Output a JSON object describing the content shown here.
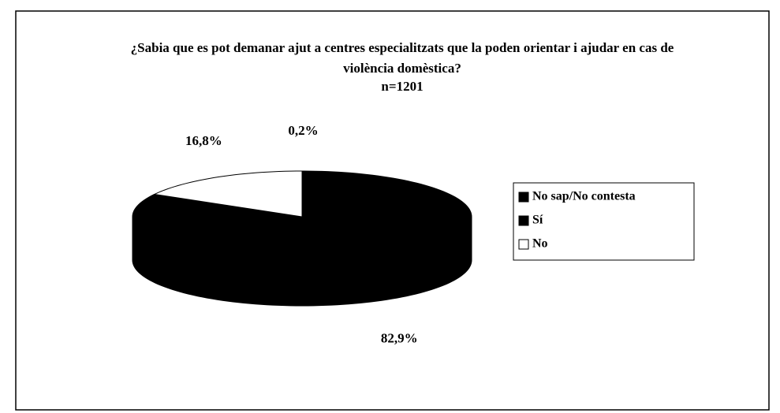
{
  "chart_data": {
    "type": "pie3d",
    "title": "¿Sabia que es pot demanar ajut a centres especialitzats que la poden orientar i ajudar en cas de violència domèstica?",
    "subtitle": "n=1201",
    "categories": [
      "No sap/No contesta",
      "Sí",
      "No"
    ],
    "values": [
      0.2,
      82.9,
      16.8
    ],
    "value_labels": [
      "0,2%",
      "82,9%",
      "16,8%"
    ],
    "colors": [
      "#000000",
      "#000000",
      "#ffffff"
    ],
    "legend": "right"
  }
}
